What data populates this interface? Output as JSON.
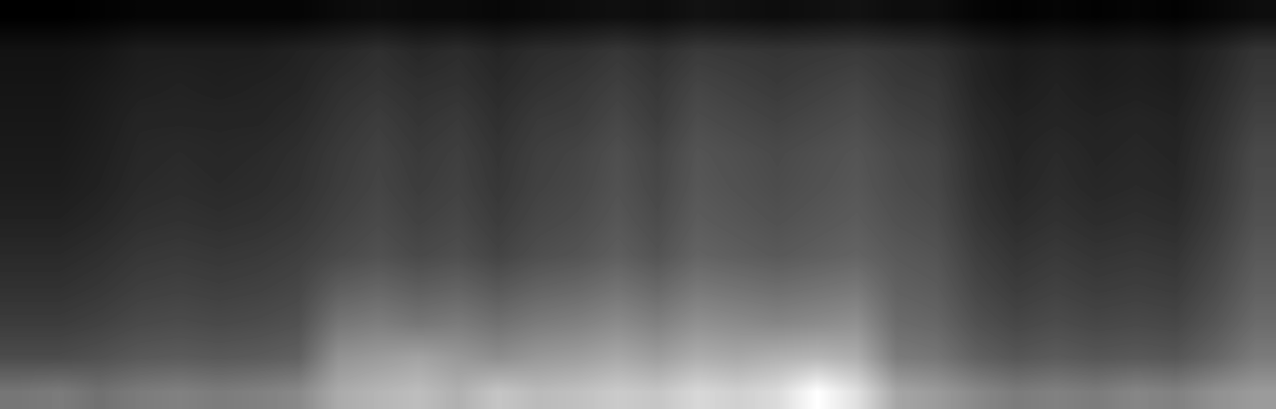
{
  "chart_data": {
    "type": "heatmap",
    "color": "gray",
    "tick_labels": false,
    "grid": false,
    "cells": [
      [
        3,
        3,
        4,
        5,
        5,
        5,
        5,
        5,
        7,
        8,
        7,
        7,
        6,
        7,
        8,
        9,
        8,
        10,
        9,
        8,
        9,
        10,
        8,
        8,
        5,
        4,
        5,
        4,
        5,
        4,
        6,
        8
      ],
      [
        10,
        10,
        11,
        14,
        14,
        14,
        14,
        16,
        18,
        21,
        18,
        20,
        17,
        20,
        21,
        24,
        21,
        25,
        24,
        23,
        24,
        25,
        23,
        21,
        16,
        13,
        14,
        13,
        14,
        13,
        17,
        23
      ],
      [
        11,
        11,
        13,
        15,
        16,
        15,
        16,
        17,
        21,
        23,
        21,
        22,
        19,
        22,
        24,
        27,
        24,
        29,
        27,
        25,
        27,
        29,
        25,
        24,
        17,
        14,
        16,
        14,
        15,
        14,
        19,
        25
      ],
      [
        12,
        12,
        14,
        17,
        17,
        17,
        17,
        19,
        23,
        26,
        23,
        25,
        21,
        25,
        26,
        30,
        26,
        32,
        30,
        28,
        30,
        32,
        28,
        26,
        19,
        16,
        17,
        16,
        17,
        16,
        21,
        28
      ],
      [
        13,
        13,
        15,
        18,
        19,
        18,
        19,
        21,
        25,
        28,
        25,
        27,
        23,
        27,
        29,
        33,
        29,
        35,
        33,
        31,
        33,
        35,
        31,
        29,
        21,
        17,
        19,
        17,
        18,
        17,
        23,
        31
      ],
      [
        14,
        14,
        16,
        19,
        20,
        19,
        20,
        22,
        26,
        29,
        26,
        28,
        24,
        28,
        30,
        34,
        30,
        36,
        34,
        32,
        34,
        36,
        32,
        30,
        22,
        18,
        20,
        18,
        19,
        18,
        24,
        32
      ],
      [
        16,
        16,
        18,
        21,
        22,
        21,
        22,
        24,
        28,
        31,
        28,
        30,
        26,
        30,
        32,
        36,
        32,
        38,
        36,
        34,
        36,
        38,
        34,
        32,
        24,
        20,
        22,
        20,
        21,
        20,
        26,
        34
      ],
      [
        19,
        19,
        21,
        24,
        25,
        24,
        25,
        27,
        31,
        34,
        31,
        33,
        29,
        33,
        35,
        39,
        35,
        41,
        39,
        37,
        39,
        41,
        37,
        35,
        27,
        23,
        25,
        23,
        24,
        23,
        29,
        37
      ],
      [
        22,
        22,
        24,
        27,
        28,
        27,
        28,
        30,
        39,
        42,
        39,
        41,
        37,
        41,
        43,
        47,
        43,
        49,
        47,
        45,
        47,
        49,
        40,
        38,
        30,
        26,
        28,
        26,
        27,
        26,
        32,
        40
      ],
      [
        26,
        26,
        28,
        31,
        32,
        31,
        32,
        34,
        48,
        51,
        48,
        50,
        46,
        50,
        52,
        56,
        52,
        58,
        56,
        54,
        56,
        58,
        44,
        42,
        34,
        30,
        32,
        30,
        31,
        30,
        36,
        44
      ],
      [
        32,
        32,
        34,
        37,
        38,
        37,
        38,
        40,
        59,
        62,
        65,
        61,
        57,
        61,
        63,
        67,
        63,
        69,
        67,
        70,
        72,
        69,
        50,
        48,
        40,
        36,
        38,
        36,
        37,
        36,
        42,
        50
      ],
      [
        48,
        50,
        46,
        50,
        52,
        50,
        52,
        55,
        68,
        72,
        75,
        70,
        78,
        74,
        76,
        80,
        78,
        85,
        82,
        86,
        100,
        88,
        66,
        62,
        55,
        50,
        52,
        50,
        54,
        52,
        58,
        62
      ]
    ]
  }
}
